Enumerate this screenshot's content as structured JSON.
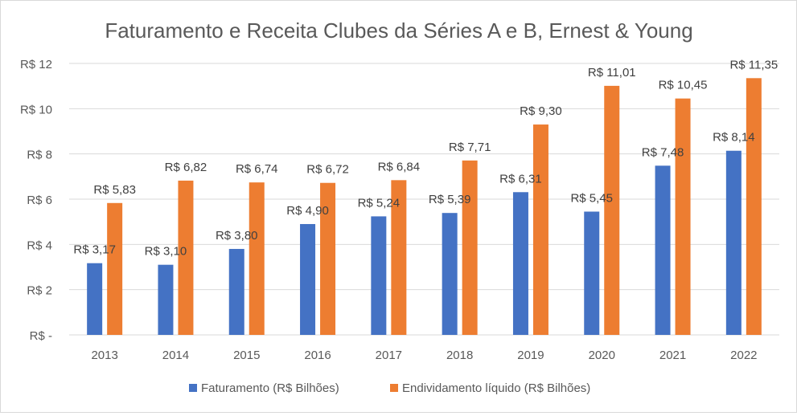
{
  "chart_data": {
    "type": "bar",
    "title": "Faturamento e Receita Clubes da Séries A e B, Ernest & Young",
    "xlabel": "",
    "ylabel": "",
    "ylim": [
      0,
      12
    ],
    "yticks": [
      0,
      2,
      4,
      6,
      8,
      10,
      12
    ],
    "ytick_labels": [
      "R$ -",
      "R$ 2",
      "R$ 4",
      "R$ 6",
      "R$ 8",
      "R$ 10",
      "R$ 12"
    ],
    "categories": [
      "2013",
      "2014",
      "2015",
      "2016",
      "2017",
      "2018",
      "2019",
      "2020",
      "2021",
      "2022"
    ],
    "grid": true,
    "legend_position": "bottom",
    "series": [
      {
        "name": "Faturamento (R$ Bilhões)",
        "color": "#4472c4",
        "values": [
          3.17,
          3.1,
          3.8,
          4.9,
          5.24,
          5.39,
          6.31,
          5.45,
          7.48,
          8.14
        ],
        "labels": [
          "R$ 3,17",
          "R$ 3,10",
          "R$ 3,80",
          "R$ 4,90",
          "R$ 5,24",
          "R$ 5,39",
          "R$ 6,31",
          "R$ 5,45",
          "R$ 7,48",
          "R$ 8,14"
        ]
      },
      {
        "name": "Endividamento líquido (R$ Bilhões)",
        "color": "#ed7d31",
        "values": [
          5.83,
          6.82,
          6.74,
          6.72,
          6.84,
          7.71,
          9.3,
          11.01,
          10.45,
          11.35
        ],
        "labels": [
          "R$ 5,83",
          "R$ 6,82",
          "R$ 6,74",
          "R$ 6,72",
          "R$ 6,84",
          "R$ 7,71",
          "R$ 9,30",
          "R$ 11,01",
          "R$ 10,45",
          "R$ 11,35"
        ]
      }
    ]
  }
}
